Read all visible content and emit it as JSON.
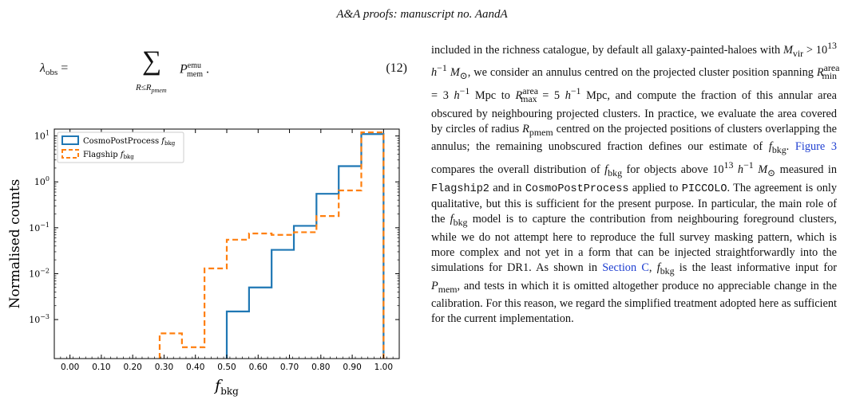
{
  "header": {
    "text": "A&A proofs: manuscript no. AandA"
  },
  "equation": {
    "lhs": "λ_obs =",
    "sum_symbol": "∑",
    "sum_subscript": "R≤R_pmem",
    "term": "P_mem^emu .",
    "number": "(12)"
  },
  "chart_data": {
    "type": "histogram",
    "xlabel": "f_bkg",
    "ylabel": "Normalised counts",
    "xlim": [
      -0.05,
      1.05
    ],
    "ylim_log10": [
      -3.85,
      1.15
    ],
    "y_scale": "log",
    "x_ticks": [
      "0.00",
      "0.10",
      "0.20",
      "0.30",
      "0.40",
      "0.50",
      "0.60",
      "0.70",
      "0.80",
      "0.90",
      "1.00"
    ],
    "y_ticks": [
      "10^-3",
      "10^-2",
      "10^-1",
      "10^0",
      "10^1"
    ],
    "legend_position": "top-left",
    "series": [
      {
        "name": "CosmoPostProcess f_bkg",
        "style": "solid",
        "color": "#1f77b4",
        "bin_edges": [
          0.286,
          0.357,
          0.429,
          0.5,
          0.571,
          0.643,
          0.714,
          0.786,
          0.857,
          0.929,
          1.0
        ],
        "values": [
          0,
          0,
          0,
          0.0015,
          0.005,
          0.033,
          0.11,
          0.55,
          2.2,
          11
        ]
      },
      {
        "name": "Flagship f_bkg",
        "style": "dashed",
        "color": "#ff7f0e",
        "bin_edges": [
          0.286,
          0.357,
          0.429,
          0.5,
          0.571,
          0.643,
          0.714,
          0.786,
          0.857,
          0.929,
          1.0
        ],
        "values": [
          0.0005,
          0.00025,
          0.013,
          0.055,
          0.075,
          0.07,
          0.08,
          0.18,
          0.65,
          12
        ]
      }
    ]
  },
  "body_text": {
    "p1": "included in the richness catalogue, by default all galaxy-painted-haloes with M_vir > 10^13 h^−1 M_⊙, we consider an annulus centred on the projected cluster position spanning R_min^area = 3 h^−1 Mpc to R_max^area = 5 h^−1 Mpc, and compute the fraction of this annular area obscured by neighbouring projected clusters. In practice, we evaluate the area covered by circles of radius R_pmem centred on the projected positions of clusters overlapping the annulus; the remaining unobscured fraction defines our estimate of f_bkg.",
    "figure_ref": "Figure 3",
    "p2": "compares the overall distribution of f_bkg for objects above 10^13 h^−1 M_⊙ measured in",
    "code_flagship": "Flagship2",
    "and_in": "and in",
    "code_cpp": "CosmoPostProcess",
    "applied_to": "applied to",
    "code_piccolo": "PICCOLO",
    "p3": ". The agreement is only qualitative, but this is sufficient for the present purpose. In particular, the main role of the f_bkg model is to capture the contribution from neighbouring foreground clusters, while we do not attempt here to reproduce the full survey masking pattern, which is more complex and not yet in a form that can be injected straightforwardly into the simulations for DR1. As shown in",
    "section_ref": "Section C",
    "p4": ", f_bkg is the least informative input for P_mem, and tests in which it is omitted altogether produce no appreciable change in the calibration. For this reason, we regard the simplified treatment adopted here as sufficient for the current implementation."
  }
}
